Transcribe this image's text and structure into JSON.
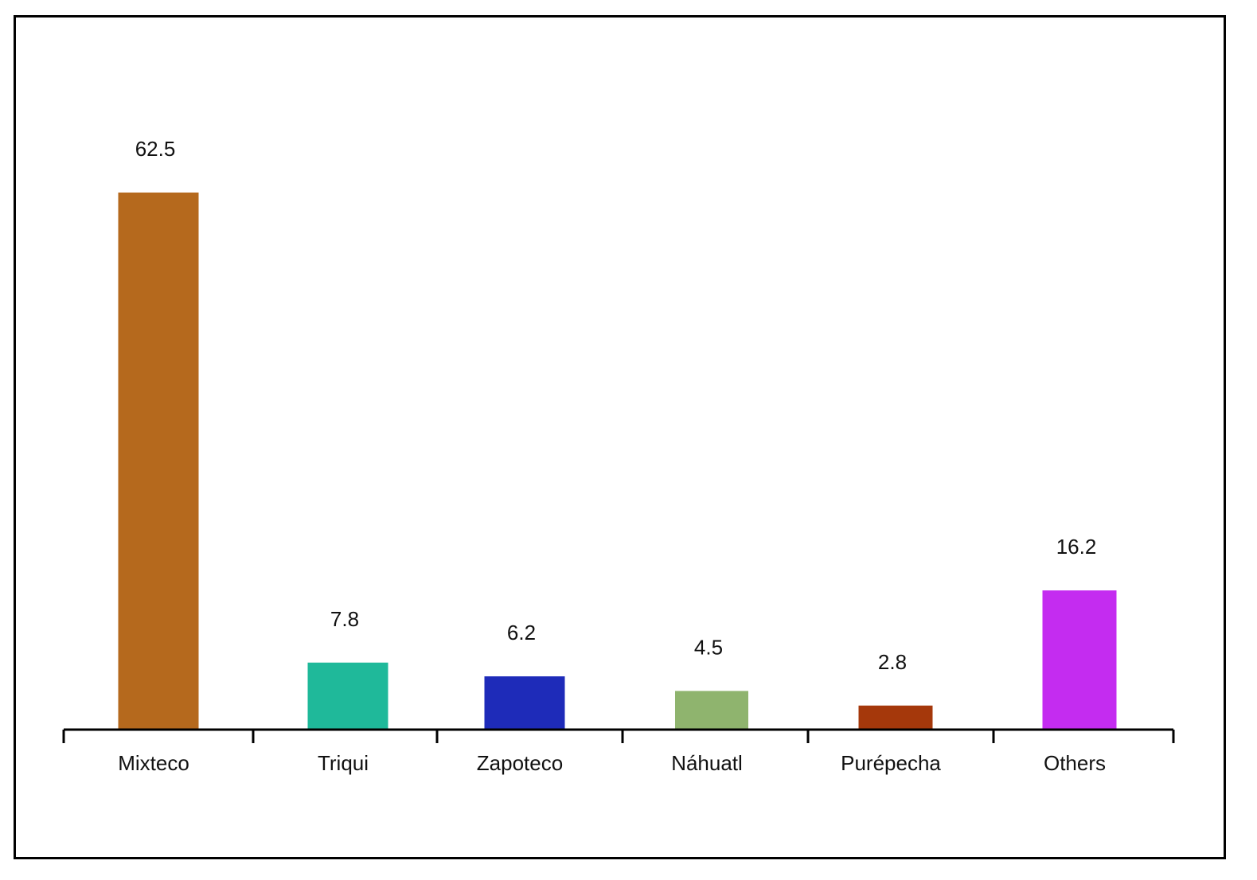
{
  "chart_data": {
    "type": "bar",
    "categories": [
      "Mixteco",
      "Triqui",
      "Zapoteco",
      "Náhuatl",
      "Purépecha",
      "Others"
    ],
    "values": [
      62.5,
      7.8,
      6.2,
      4.5,
      2.8,
      16.2
    ],
    "value_labels": [
      "62.5",
      "7.8",
      "6.2",
      "4.5",
      "2.8",
      "16.2"
    ],
    "colors": [
      "#b5691d",
      "#1fb99a",
      "#1e2bb9",
      "#8fb46e",
      "#a5380b",
      "#c42cf0"
    ],
    "title": "",
    "xlabel": "",
    "ylabel": "",
    "ylim": [
      0,
      62.5
    ],
    "grid": false,
    "data_labels": true,
    "legend": "none"
  }
}
